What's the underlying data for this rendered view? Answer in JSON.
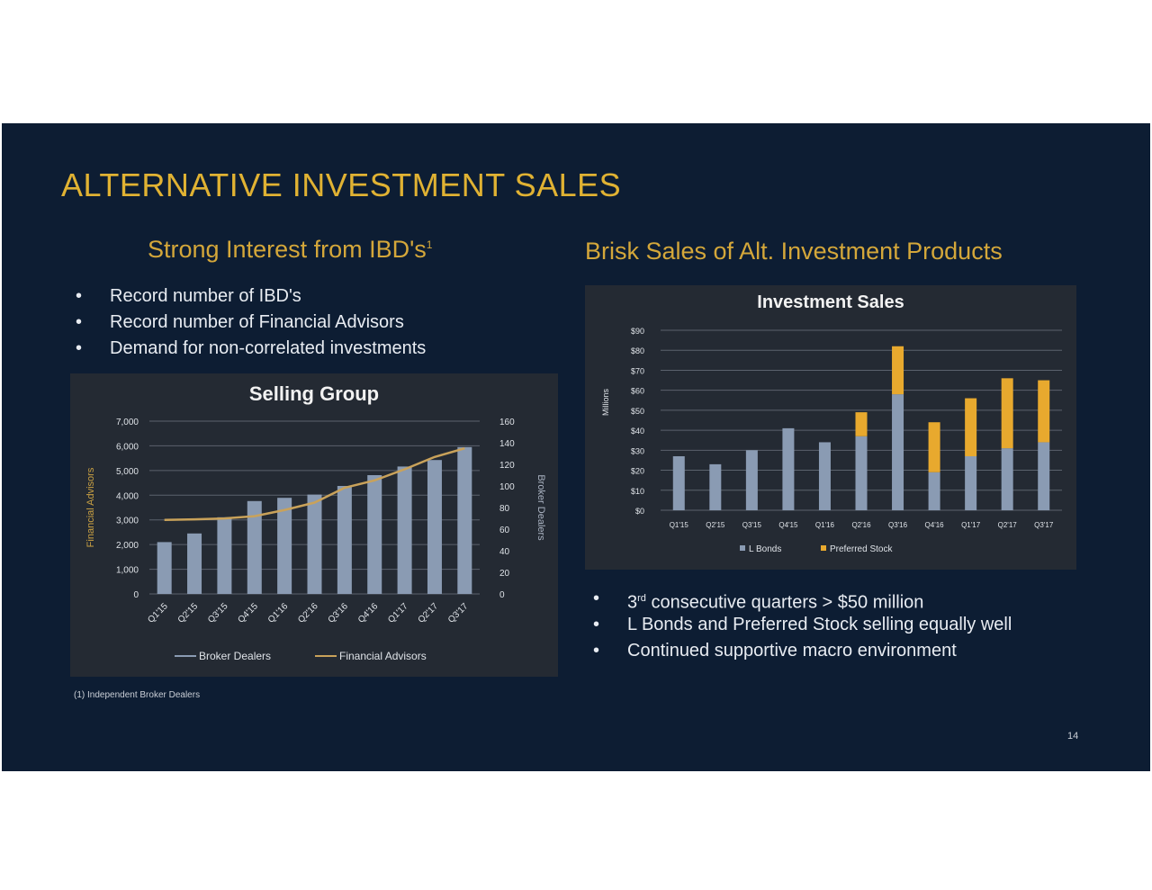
{
  "slide": {
    "title": "ALTERNATIVE INVESTMENT SALES",
    "left_heading": "Strong Interest from IBD's",
    "left_heading_sup": "1",
    "right_heading": "Brisk Sales of Alt. Investment Products",
    "left_bullets": [
      "Record number of IBD's",
      "Record number of Financial Advisors",
      "Demand for non-correlated investments"
    ],
    "right_bullets": [
      {
        "sup": "rd",
        "pre": "3",
        "text": " consecutive quarters > $50 million"
      },
      {
        "text": "L Bonds and Preferred Stock selling equally well"
      },
      {
        "text": "Continued supportive macro environment"
      }
    ],
    "bullet_glyph": "•",
    "footnote": "(1) Independent Broker Dealers",
    "page_number": "14"
  },
  "colors": {
    "background": "#0d1d33",
    "accent_gold": "#e0b233",
    "bar_blue": "#8a9bb3",
    "preferred_gold": "#e8a92e",
    "panel": "#242a33"
  },
  "chart_data": [
    {
      "type": "bar",
      "title": "Selling Group",
      "ylabel": "Financial Advisors",
      "y2label": "Broker Dealers",
      "categories": [
        "Q1'15",
        "Q2'15",
        "Q3'15",
        "Q4'15",
        "Q1'16",
        "Q2'16",
        "Q3'16",
        "Q4'16",
        "Q1'17",
        "Q2'17",
        "Q3'17"
      ],
      "ylim": [
        0,
        7000
      ],
      "yticks": [
        "7,000",
        "6,000",
        "5,000",
        "4,000",
        "3,000",
        "2,000",
        "1,000",
        "0"
      ],
      "y2lim": [
        0,
        160
      ],
      "y2ticks": [
        "160",
        "140",
        "120",
        "100",
        "80",
        "60",
        "40",
        "20",
        "0"
      ],
      "series": [
        {
          "name": "Broker Dealers",
          "kind": "bar",
          "axis": "right",
          "values": [
            48,
            56,
            71,
            86,
            89,
            92,
            100,
            110,
            118,
            124,
            136
          ]
        },
        {
          "name": "Financial Advisors",
          "kind": "line",
          "axis": "left",
          "values": [
            3000,
            3020,
            3060,
            3150,
            3400,
            3700,
            4300,
            4600,
            5050,
            5550,
            5900
          ]
        }
      ],
      "grid": true,
      "legend": "bottom"
    },
    {
      "type": "bar",
      "stacked": true,
      "title": "Investment Sales",
      "ylabel": "Millions",
      "categories": [
        "Q1'15",
        "Q2'15",
        "Q3'15",
        "Q4'15",
        "Q1'16",
        "Q2'16",
        "Q3'16",
        "Q4'16",
        "Q1'17",
        "Q2'17",
        "Q3'17"
      ],
      "ylim": [
        0,
        90
      ],
      "yticks": [
        "$90",
        "$80",
        "$70",
        "$60",
        "$50",
        "$40",
        "$30",
        "$20",
        "$10",
        "$0"
      ],
      "series": [
        {
          "name": "L Bonds",
          "values": [
            27,
            23,
            30,
            41,
            34,
            37,
            58,
            19,
            27,
            31,
            34
          ]
        },
        {
          "name": "Preferred Stock",
          "values": [
            0,
            0,
            0,
            0,
            0,
            12,
            24,
            25,
            29,
            35,
            31
          ]
        }
      ],
      "grid": true,
      "legend": "bottom"
    }
  ]
}
